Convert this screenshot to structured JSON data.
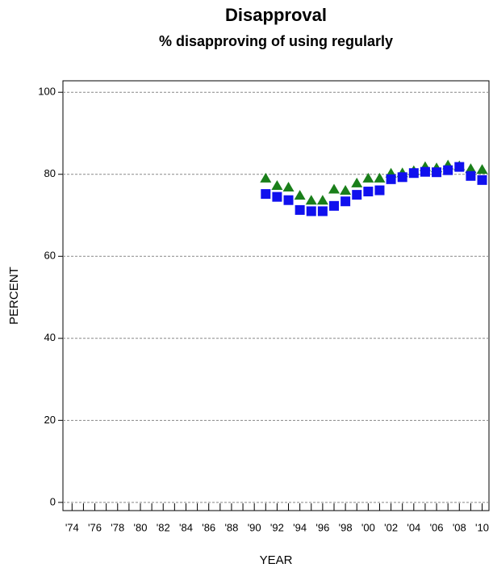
{
  "chart_data": {
    "type": "scatter",
    "title": "Disapproval",
    "subtitle": "% disapproving of using regularly",
    "xlabel": "YEAR",
    "ylabel": "PERCENT",
    "x": [
      1991,
      1992,
      1993,
      1994,
      1995,
      1996,
      1997,
      1998,
      1999,
      2000,
      2001,
      2002,
      2003,
      2004,
      2005,
      2006,
      2007,
      2008,
      2009,
      2010
    ],
    "series": [
      {
        "color": "#1a7f1a",
        "marker": "triangle",
        "values": [
          79,
          77.2,
          76.8,
          74.8,
          73.6,
          73.6,
          76.3,
          76,
          77.8,
          79,
          79,
          80.2,
          80.3,
          80.8,
          81.8,
          81.5,
          82.2,
          82,
          81.3,
          81.1
        ]
      },
      {
        "color": "#1010ee",
        "marker": "square",
        "values": [
          75.2,
          74.5,
          73.7,
          71.3,
          71,
          71,
          72.3,
          73.4,
          75,
          75.8,
          76.1,
          78.8,
          79.3,
          80.3,
          80.6,
          80.5,
          81,
          81.8,
          79.6,
          78.6
        ]
      }
    ],
    "xlim": [
      1973.2,
      2010.6
    ],
    "ylim": [
      -2,
      102.8
    ],
    "xticks": [
      {
        "value": 1974,
        "label": "'74"
      },
      {
        "value": 1976,
        "label": "'76"
      },
      {
        "value": 1978,
        "label": "'78"
      },
      {
        "value": 1980,
        "label": "'80"
      },
      {
        "value": 1982,
        "label": "'82"
      },
      {
        "value": 1984,
        "label": "'84"
      },
      {
        "value": 1986,
        "label": "'86"
      },
      {
        "value": 1988,
        "label": "'88"
      },
      {
        "value": 1990,
        "label": "'90"
      },
      {
        "value": 1992,
        "label": "'92"
      },
      {
        "value": 1994,
        "label": "'94"
      },
      {
        "value": 1996,
        "label": "'96"
      },
      {
        "value": 1998,
        "label": "'98"
      },
      {
        "value": 2000,
        "label": "'00"
      },
      {
        "value": 2002,
        "label": "'02"
      },
      {
        "value": 2004,
        "label": "'04"
      },
      {
        "value": 2006,
        "label": "'06"
      },
      {
        "value": 2008,
        "label": "'08"
      },
      {
        "value": 2010,
        "label": "'10"
      }
    ],
    "xminorticks": [
      1975,
      1977,
      1979,
      1981,
      1983,
      1985,
      1987,
      1989,
      1991,
      1993,
      1995,
      1997,
      1999,
      2001,
      2003,
      2005,
      2007,
      2009
    ],
    "yticks": [
      0,
      20,
      40,
      60,
      80,
      100
    ],
    "grid": true
  }
}
